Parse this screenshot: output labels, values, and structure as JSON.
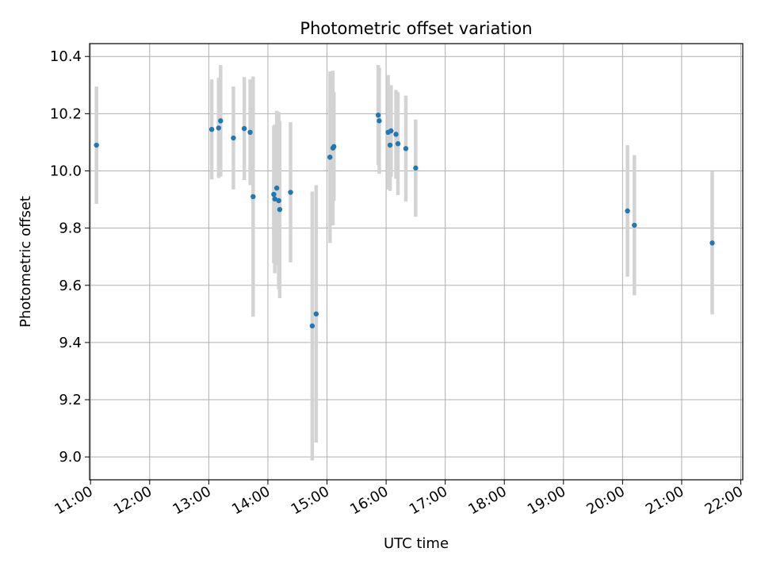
{
  "chart_data": {
    "type": "scatter",
    "title": "Photometric offset variation",
    "xlabel": "UTC time",
    "ylabel": "Photometric offset",
    "x_unit": "hour",
    "xlim": [
      "10:59",
      "22:02"
    ],
    "ylim": [
      8.92,
      10.445
    ],
    "x_ticks": [
      "11:00",
      "12:00",
      "13:00",
      "14:00",
      "15:00",
      "16:00",
      "17:00",
      "18:00",
      "19:00",
      "20:00",
      "21:00",
      "22:00"
    ],
    "y_ticks": [
      "9.0",
      "9.2",
      "9.4",
      "9.6",
      "9.8",
      "10.0",
      "10.2",
      "10.4"
    ],
    "grid": true,
    "colors": {
      "marker": "#1f77b4",
      "errorbar": "#d3d3d3",
      "grid": "#b0b0b0"
    },
    "series": [
      {
        "points": [
          {
            "x": "11:06",
            "y": 10.09,
            "err": 0.205
          },
          {
            "x": "13:03",
            "y": 10.145,
            "err": 0.175
          },
          {
            "x": "13:10",
            "y": 10.15,
            "err": 0.175
          },
          {
            "x": "13:12",
            "y": 10.175,
            "err": 0.195
          },
          {
            "x": "13:25",
            "y": 10.115,
            "err": 0.18
          },
          {
            "x": "13:36",
            "y": 10.148,
            "err": 0.18
          },
          {
            "x": "13:42",
            "y": 10.135,
            "err": 0.185
          },
          {
            "x": "13:45",
            "y": 9.91,
            "err": 0.42
          },
          {
            "x": "14:06",
            "y": 9.918,
            "err": 0.24
          },
          {
            "x": "14:07",
            "y": 9.902,
            "err": 0.26
          },
          {
            "x": "14:09",
            "y": 9.94,
            "err": 0.27
          },
          {
            "x": "14:11",
            "y": 9.896,
            "err": 0.31
          },
          {
            "x": "14:12",
            "y": 9.865,
            "err": 0.31
          },
          {
            "x": "14:23",
            "y": 9.925,
            "err": 0.245
          },
          {
            "x": "14:45",
            "y": 9.458,
            "err": 0.47
          },
          {
            "x": "14:49",
            "y": 9.5,
            "err": 0.45
          },
          {
            "x": "15:03",
            "y": 10.048,
            "err": 0.3
          },
          {
            "x": "15:06",
            "y": 10.08,
            "err": 0.27
          },
          {
            "x": "15:07",
            "y": 10.085,
            "err": 0.19
          },
          {
            "x": "15:52",
            "y": 10.195,
            "err": 0.175
          },
          {
            "x": "15:53",
            "y": 10.175,
            "err": 0.185
          },
          {
            "x": "16:02",
            "y": 10.135,
            "err": 0.2
          },
          {
            "x": "16:04",
            "y": 10.09,
            "err": 0.16
          },
          {
            "x": "16:05",
            "y": 10.14,
            "err": 0.16
          },
          {
            "x": "16:10",
            "y": 10.128,
            "err": 0.155
          },
          {
            "x": "16:12",
            "y": 10.095,
            "err": 0.18
          },
          {
            "x": "16:20",
            "y": 10.078,
            "err": 0.185
          },
          {
            "x": "16:30",
            "y": 10.01,
            "err": 0.17
          },
          {
            "x": "20:05",
            "y": 9.86,
            "err": 0.23
          },
          {
            "x": "20:12",
            "y": 9.81,
            "err": 0.245
          },
          {
            "x": "21:31",
            "y": 9.748,
            "err": 0.25
          }
        ]
      }
    ]
  }
}
